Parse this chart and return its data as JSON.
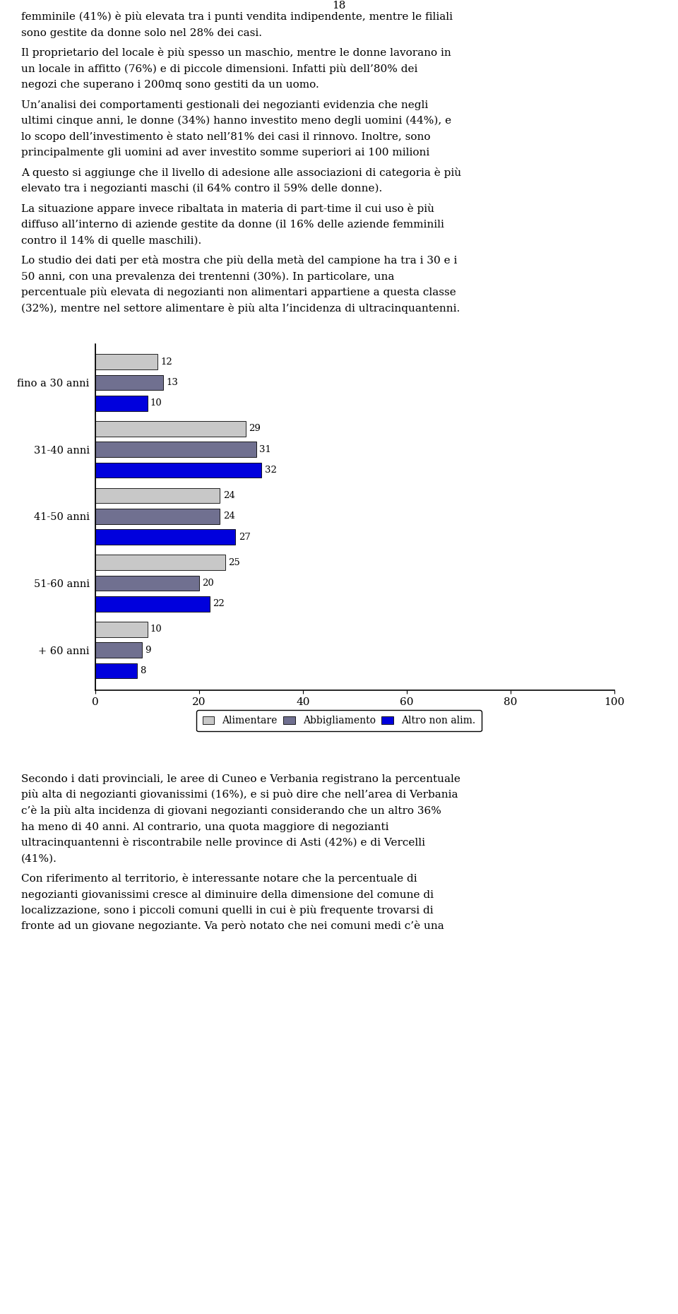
{
  "categories": [
    "fino a 30 anni",
    "31-40 anni",
    "41-50 anni",
    "51-60 anni",
    "+ 60 anni"
  ],
  "series": {
    "Alimentare": [
      12,
      29,
      24,
      25,
      10
    ],
    "Abbigliamento": [
      13,
      31,
      24,
      20,
      9
    ],
    "Altro non alim.": [
      10,
      32,
      27,
      22,
      8
    ]
  },
  "colors": {
    "Alimentare": "#c8c8c8",
    "Abbigliamento": "#707090",
    "Altro non alim.": "#0000dd"
  },
  "xlim": [
    0,
    100
  ],
  "xticks": [
    0,
    20,
    40,
    60,
    80,
    100
  ],
  "figure_width": 9.6,
  "figure_height": 18.6,
  "font_size_body": 11.0,
  "page_number": "18",
  "text_top_paragraphs": [
    [
      "femminile (41%) è più elevata tra i punti vendita indipendente, mentre le filiali",
      "sono gestite da donne solo nel 28% dei casi."
    ],
    [
      "Il proprietario del locale è più spesso un maschio, mentre le donne lavorano in",
      "un locale in affitto (76%) e di piccole dimensioni. Infatti più dell’80% dei",
      "negozi che superano i 200mq sono gestiti da un uomo."
    ],
    [
      "Un’analisi dei comportamenti gestionali dei negozianti evidenzia che negli",
      "ultimi cinque anni, le donne (34%) hanno investito meno degli uomini (44%), e",
      "lo scopo dell’investimento è stato nell’81% dei casi il rinnovo. Inoltre, sono",
      "principalmente gli uomini ad aver investito somme superiori ai 100 milioni"
    ],
    [
      "A questo si aggiunge che il livello di adesione alle associazioni di categoria è più",
      "elevato tra i negozianti maschi (il 64% contro il 59% delle donne)."
    ],
    [
      "La situazione appare invece ribaltata in materia di part-time il cui uso è più",
      "diffuso all’interno di aziende gestite da donne (il 16% delle aziende femminili",
      "contro il 14% di quelle maschili)."
    ],
    [
      "Lo studio dei dati per età mostra che più della metà del campione ha tra i 30 e i",
      "50 anni, con una prevalenza dei trentenni (30%). In particolare, una",
      "percentuale più elevata di negozianti non alimentari appartiene a questa classe",
      "(32%), mentre nel settore alimentare è più alta l’incidenza di ultracinquantenni."
    ]
  ],
  "text_bottom_paragraphs": [
    [
      "Secondo i dati provinciali, le aree di Cuneo e Verbania registrano la percentuale",
      "più alta di negozianti giovanissimi (16%), e si può dire che nell’area di Verbania",
      "c’è la più alta incidenza di giovani negozianti considerando che un altro 36%",
      "ha meno di 40 anni. Al contrario, una quota maggiore di negozianti",
      "ultracinquantenni è riscontrabile nelle province di Asti (42%) e di Vercelli",
      "(41%)."
    ],
    [
      "Con riferimento al territorio, è interessante notare che la percentuale di",
      "negozianti giovanissimi cresce al diminuire della dimensione del comune di",
      "localizzazione, sono i piccoli comuni quelli in cui è più frequente trovarsi di",
      "fronte ad un giovane negoziante. Va però notato che nei comuni medi c’è una"
    ]
  ]
}
